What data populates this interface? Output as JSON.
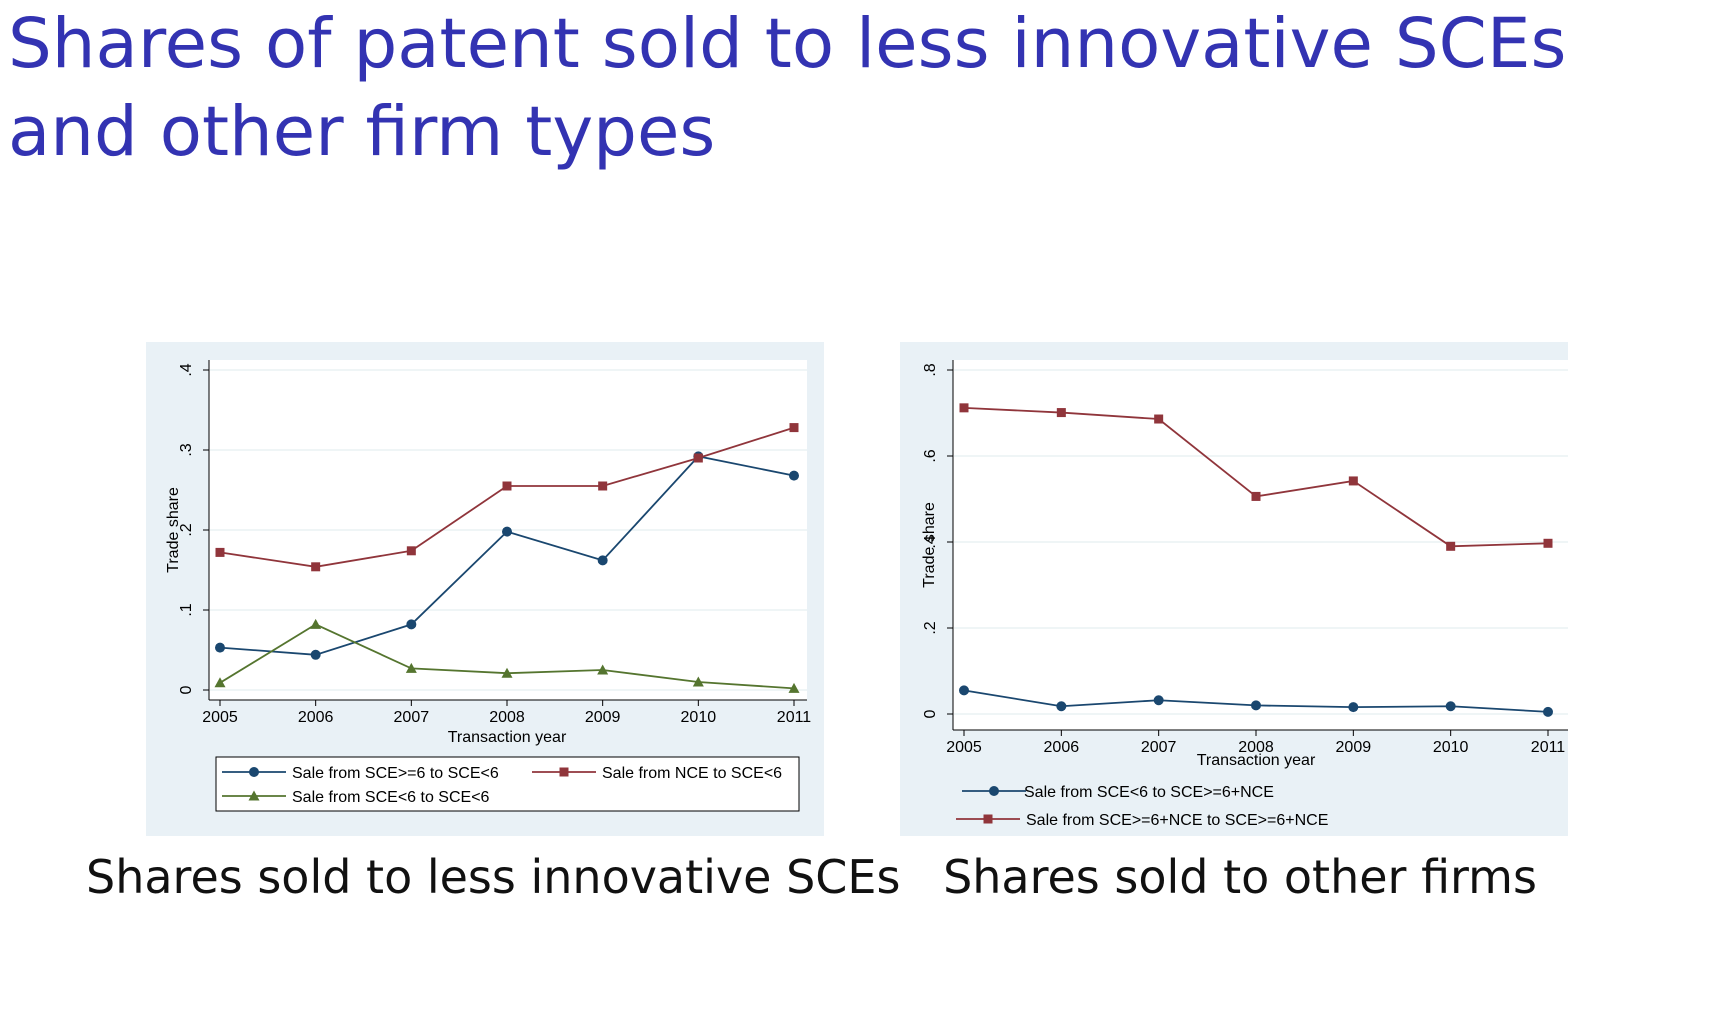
{
  "slide": {
    "title": "Shares of patent sold to less innovative SCEs and other firm types"
  },
  "captions": {
    "left": "Shares sold to less innovative SCEs",
    "right": "Shares sold to other firms"
  },
  "colors": {
    "title": "#3333b2",
    "panel_bg": "#e9f1f6",
    "navy": "#1a476f",
    "maroon": "#90353b",
    "green": "#55752f",
    "grid": "#eaf2f3"
  },
  "chart_data": [
    {
      "type": "line",
      "title": "",
      "xlabel": "Transaction year",
      "ylabel": "Trade share",
      "x": [
        "2005",
        "2006",
        "2007",
        "2008",
        "2009",
        "2010",
        "2011"
      ],
      "y_ticks": [
        "0",
        ".1",
        ".2",
        ".3",
        ".4"
      ],
      "ylim": [
        0,
        0.4
      ],
      "grid": true,
      "legend_position": "bottom",
      "series": [
        {
          "name": "Sale from SCE>=6 to SCE<6",
          "marker": "circle",
          "color": "#1a476f",
          "values": [
            0.053,
            0.044,
            0.082,
            0.198,
            0.162,
            0.292,
            0.268
          ]
        },
        {
          "name": "Sale from NCE to SCE<6",
          "marker": "square",
          "color": "#90353b",
          "values": [
            0.172,
            0.154,
            0.174,
            0.255,
            0.255,
            0.29,
            0.328
          ]
        },
        {
          "name": "Sale from SCE<6 to SCE<6",
          "marker": "triangle",
          "color": "#55752f",
          "values": [
            0.009,
            0.082,
            0.027,
            0.021,
            0.025,
            0.01,
            0.002
          ]
        }
      ]
    },
    {
      "type": "line",
      "title": "",
      "xlabel": "Transaction year",
      "ylabel": "Trade share",
      "x": [
        "2005",
        "2006",
        "2007",
        "2008",
        "2009",
        "2010",
        "2011"
      ],
      "y_ticks": [
        "0",
        ".2",
        ".4",
        ".6",
        ".8"
      ],
      "ylim": [
        0,
        0.8
      ],
      "grid": true,
      "legend_position": "bottom",
      "series": [
        {
          "name": "Sale from SCE<6 to SCE>=6+NCE",
          "marker": "circle",
          "color": "#1a476f",
          "values": [
            0.055,
            0.018,
            0.032,
            0.02,
            0.016,
            0.018,
            0.005
          ]
        },
        {
          "name": "Sale from SCE>=6+NCE to SCE>=6+NCE",
          "marker": "square",
          "color": "#90353b",
          "values": [
            0.712,
            0.701,
            0.686,
            0.506,
            0.542,
            0.39,
            0.397
          ]
        }
      ]
    }
  ]
}
